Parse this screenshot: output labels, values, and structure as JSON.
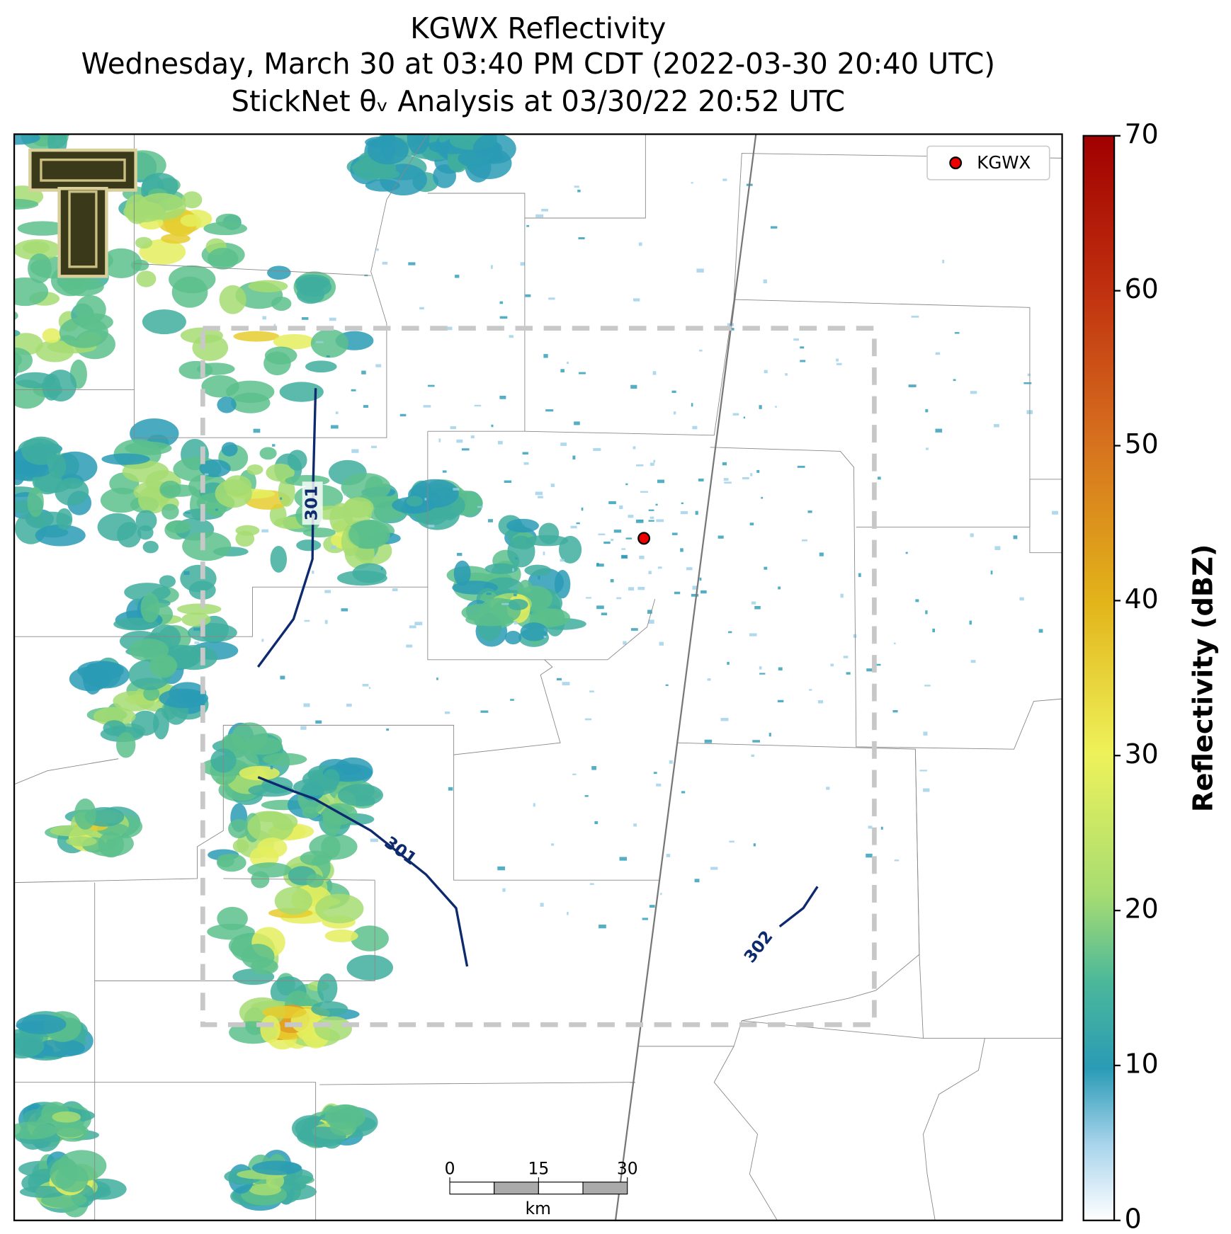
{
  "title": [
    "KGWX Reflectivity",
    "Wednesday, March 30 at 03:40 PM CDT (2022-03-30 20:40 UTC)",
    "StickNet θᵥ Analysis at 03/30/22 20:52 UTC"
  ],
  "legend": {
    "label": "KGWX"
  },
  "colorbar": {
    "label": "Reflectivity (dBZ)",
    "lim": [
      0,
      70
    ],
    "ticks": [
      0,
      10,
      20,
      30,
      40,
      50,
      60,
      70
    ]
  },
  "contours": [
    301,
    301,
    302
  ],
  "scale_bar": {
    "ticks": [
      0,
      15,
      30
    ],
    "unit": "km"
  }
}
